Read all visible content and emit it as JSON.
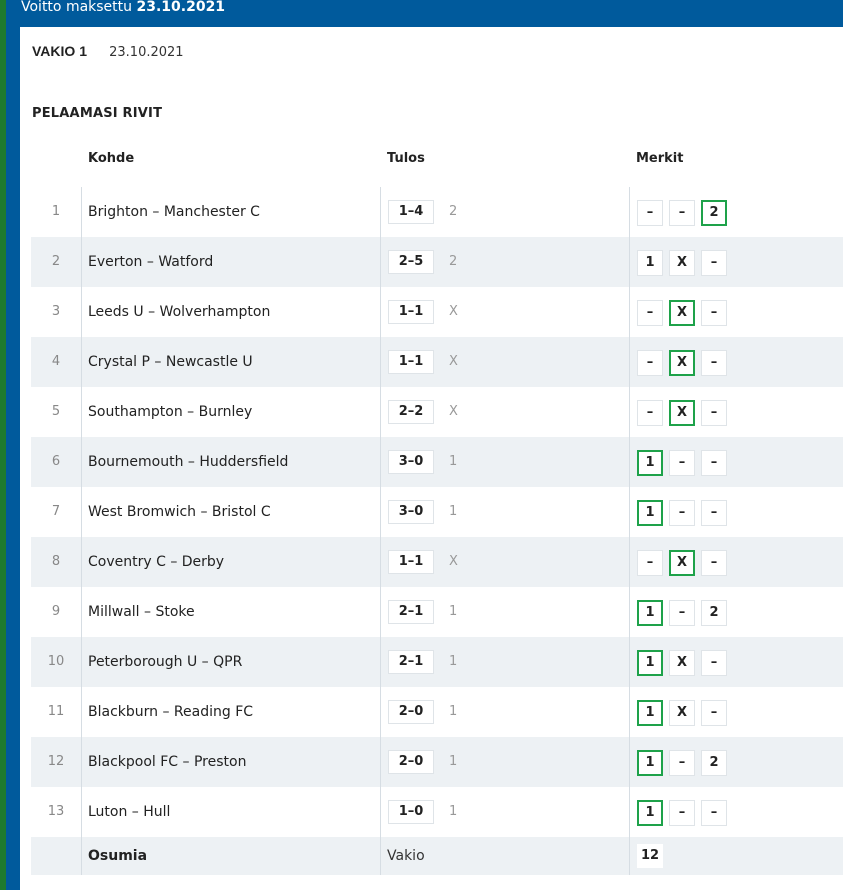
{
  "banner": {
    "label": "Voitto maksettu",
    "date": "23.10.2021"
  },
  "header": {
    "game": "VAKIO 1",
    "date": "23.10.2021"
  },
  "section_title": "PELAAMASI RIVIT",
  "columns": {
    "kohde": "Kohde",
    "tulos": "Tulos",
    "merkit": "Merkit"
  },
  "rows": [
    {
      "num": "1",
      "match": "Brighton – Manchester C",
      "score": "1–4",
      "result": "2",
      "marks": [
        "–",
        "–",
        "2"
      ],
      "hit": 2
    },
    {
      "num": "2",
      "match": "Everton – Watford",
      "score": "2–5",
      "result": "2",
      "marks": [
        "1",
        "X",
        "–"
      ],
      "hit": -1
    },
    {
      "num": "3",
      "match": "Leeds U – Wolverhampton",
      "score": "1–1",
      "result": "X",
      "marks": [
        "–",
        "X",
        "–"
      ],
      "hit": 1
    },
    {
      "num": "4",
      "match": "Crystal P – Newcastle U",
      "score": "1–1",
      "result": "X",
      "marks": [
        "–",
        "X",
        "–"
      ],
      "hit": 1
    },
    {
      "num": "5",
      "match": "Southampton – Burnley",
      "score": "2–2",
      "result": "X",
      "marks": [
        "–",
        "X",
        "–"
      ],
      "hit": 1
    },
    {
      "num": "6",
      "match": "Bournemouth – Huddersfield",
      "score": "3–0",
      "result": "1",
      "marks": [
        "1",
        "–",
        "–"
      ],
      "hit": 0
    },
    {
      "num": "7",
      "match": "West Bromwich – Bristol C",
      "score": "3–0",
      "result": "1",
      "marks": [
        "1",
        "–",
        "–"
      ],
      "hit": 0
    },
    {
      "num": "8",
      "match": "Coventry C – Derby",
      "score": "1–1",
      "result": "X",
      "marks": [
        "–",
        "X",
        "–"
      ],
      "hit": 1
    },
    {
      "num": "9",
      "match": "Millwall – Stoke",
      "score": "2–1",
      "result": "1",
      "marks": [
        "1",
        "–",
        "2"
      ],
      "hit": 0
    },
    {
      "num": "10",
      "match": "Peterborough U – QPR",
      "score": "2–1",
      "result": "1",
      "marks": [
        "1",
        "X",
        "–"
      ],
      "hit": 0
    },
    {
      "num": "11",
      "match": "Blackburn – Reading FC",
      "score": "2–0",
      "result": "1",
      "marks": [
        "1",
        "X",
        "–"
      ],
      "hit": 0
    },
    {
      "num": "12",
      "match": "Blackpool FC – Preston",
      "score": "2–0",
      "result": "1",
      "marks": [
        "1",
        "–",
        "2"
      ],
      "hit": 0
    },
    {
      "num": "13",
      "match": "Luton – Hull",
      "score": "1–0",
      "result": "1",
      "marks": [
        "1",
        "–",
        "–"
      ],
      "hit": 0
    }
  ],
  "footer": {
    "label": "Osumia",
    "type": "Vakio",
    "count": "12"
  },
  "colors": {
    "blue": "#005a9c",
    "green": "#1e7a2e",
    "hit": "#1ea24a",
    "alt_row": "#edf1f4"
  }
}
